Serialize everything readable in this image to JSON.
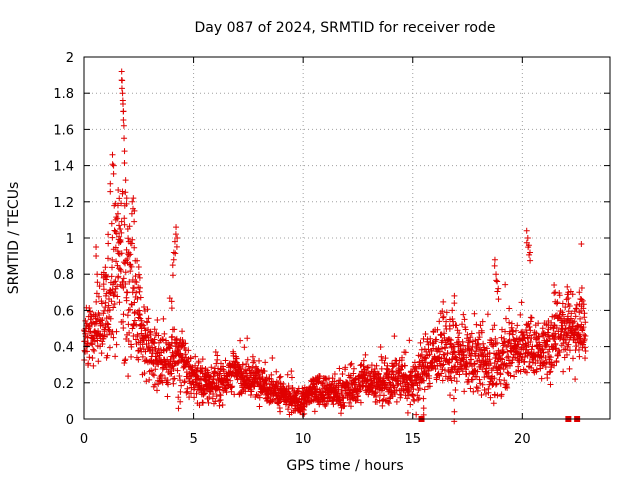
{
  "chart_data": {
    "type": "scatter",
    "title": "Day 087 of 2024, SRMTID for receiver rode",
    "xlabel": "GPS time / hours",
    "ylabel": "SRMTID / TECUs",
    "xlim": [
      0,
      24
    ],
    "ylim": [
      0,
      2
    ],
    "xticks": [
      0,
      5,
      10,
      15,
      20
    ],
    "yticks": [
      0,
      0.2,
      0.4,
      0.6,
      0.8,
      1,
      1.2,
      1.4,
      1.6,
      1.8,
      2
    ],
    "ytick_labels": [
      "0",
      "0.2",
      "0.4",
      "0.6",
      "0.8",
      "1",
      "1.2",
      "1.4",
      "1.6",
      "1.8",
      "2"
    ],
    "grid": true,
    "marker": "+",
    "color": "#e00000",
    "trend": [
      [
        0.0,
        0.45
      ],
      [
        0.3,
        0.47
      ],
      [
        0.6,
        0.52
      ],
      [
        0.9,
        0.58
      ],
      [
        1.2,
        0.7
      ],
      [
        1.5,
        0.85
      ],
      [
        1.8,
        0.78
      ],
      [
        2.1,
        0.62
      ],
      [
        2.4,
        0.55
      ],
      [
        2.7,
        0.45
      ],
      [
        3.0,
        0.38
      ],
      [
        3.3,
        0.34
      ],
      [
        3.6,
        0.32
      ],
      [
        3.9,
        0.33
      ],
      [
        4.2,
        0.35
      ],
      [
        4.5,
        0.32
      ],
      [
        4.8,
        0.25
      ],
      [
        5.2,
        0.21
      ],
      [
        5.6,
        0.19
      ],
      [
        6.0,
        0.2
      ],
      [
        6.4,
        0.22
      ],
      [
        6.8,
        0.27
      ],
      [
        7.2,
        0.24
      ],
      [
        7.6,
        0.21
      ],
      [
        8.0,
        0.22
      ],
      [
        8.4,
        0.18
      ],
      [
        8.8,
        0.15
      ],
      [
        9.2,
        0.12
      ],
      [
        9.6,
        0.1
      ],
      [
        10.0,
        0.09
      ],
      [
        10.4,
        0.16
      ],
      [
        10.8,
        0.17
      ],
      [
        11.2,
        0.15
      ],
      [
        11.6,
        0.14
      ],
      [
        12.0,
        0.16
      ],
      [
        12.4,
        0.17
      ],
      [
        12.8,
        0.23
      ],
      [
        13.2,
        0.21
      ],
      [
        13.6,
        0.18
      ],
      [
        14.0,
        0.2
      ],
      [
        14.4,
        0.24
      ],
      [
        14.8,
        0.2
      ],
      [
        15.2,
        0.22
      ],
      [
        15.6,
        0.3
      ],
      [
        16.0,
        0.36
      ],
      [
        16.4,
        0.4
      ],
      [
        16.8,
        0.3
      ],
      [
        17.2,
        0.35
      ],
      [
        17.6,
        0.33
      ],
      [
        18.0,
        0.32
      ],
      [
        18.4,
        0.3
      ],
      [
        18.8,
        0.27
      ],
      [
        19.2,
        0.36
      ],
      [
        19.6,
        0.4
      ],
      [
        20.0,
        0.38
      ],
      [
        20.4,
        0.4
      ],
      [
        20.8,
        0.38
      ],
      [
        21.2,
        0.38
      ],
      [
        21.6,
        0.48
      ],
      [
        22.0,
        0.52
      ],
      [
        22.4,
        0.5
      ],
      [
        22.8,
        0.5
      ]
    ],
    "spread": [
      [
        0.0,
        0.08
      ],
      [
        1.0,
        0.15
      ],
      [
        1.5,
        0.25
      ],
      [
        2.0,
        0.22
      ],
      [
        2.5,
        0.15
      ],
      [
        3.0,
        0.08
      ],
      [
        4.0,
        0.1
      ],
      [
        5.0,
        0.06
      ],
      [
        7.0,
        0.06
      ],
      [
        9.0,
        0.05
      ],
      [
        10.0,
        0.04
      ],
      [
        12.0,
        0.05
      ],
      [
        14.0,
        0.07
      ],
      [
        16.0,
        0.1
      ],
      [
        17.0,
        0.1
      ],
      [
        19.0,
        0.1
      ],
      [
        21.0,
        0.08
      ],
      [
        22.0,
        0.12
      ],
      [
        23.0,
        0.12
      ]
    ],
    "point_count": 2600,
    "spikes": [
      [
        0.55,
        0.95
      ],
      [
        0.6,
        0.8
      ],
      [
        0.9,
        0.78
      ],
      [
        1.0,
        0.68
      ],
      [
        1.1,
        1.02
      ],
      [
        1.2,
        1.3
      ],
      [
        1.3,
        1.46
      ],
      [
        1.35,
        1.4
      ],
      [
        1.45,
        1.1
      ],
      [
        1.55,
        1.18
      ],
      [
        1.6,
        1.07
      ],
      [
        1.65,
        1.05
      ],
      [
        1.72,
        1.92
      ],
      [
        1.74,
        1.87
      ],
      [
        1.76,
        1.8
      ],
      [
        1.78,
        1.74
      ],
      [
        1.8,
        1.7
      ],
      [
        1.82,
        1.62
      ],
      [
        1.85,
        1.48
      ],
      [
        1.9,
        1.32
      ],
      [
        1.95,
        1.22
      ],
      [
        2.0,
        1.05
      ],
      [
        2.05,
        0.98
      ],
      [
        2.2,
        1.2
      ],
      [
        2.25,
        1.22
      ],
      [
        2.3,
        1.15
      ],
      [
        2.5,
        0.84
      ],
      [
        2.55,
        0.78
      ],
      [
        4.05,
        0.85
      ],
      [
        4.1,
        0.92
      ],
      [
        4.15,
        0.98
      ],
      [
        4.2,
        1.06
      ],
      [
        4.25,
        1.0
      ],
      [
        4.0,
        0.65
      ],
      [
        18.75,
        0.88
      ],
      [
        18.8,
        0.8
      ],
      [
        18.85,
        0.76
      ],
      [
        18.9,
        0.72
      ],
      [
        20.2,
        1.04
      ],
      [
        20.25,
        1.0
      ],
      [
        20.3,
        0.96
      ],
      [
        20.35,
        0.92
      ],
      [
        16.7,
        0.55
      ],
      [
        16.8,
        0.6
      ],
      [
        16.9,
        0.68
      ],
      [
        21.45,
        0.74
      ],
      [
        21.5,
        0.7
      ],
      [
        22.05,
        0.73
      ],
      [
        22.1,
        0.7
      ],
      [
        22.6,
        0.7
      ],
      [
        22.7,
        0.66
      ],
      [
        15.5,
        0.06
      ],
      [
        16.9,
        0.04
      ],
      [
        4.3,
        0.12
      ],
      [
        4.4,
        0.15
      ]
    ],
    "zero_markers": [
      15.4,
      22.1,
      22.5
    ]
  }
}
